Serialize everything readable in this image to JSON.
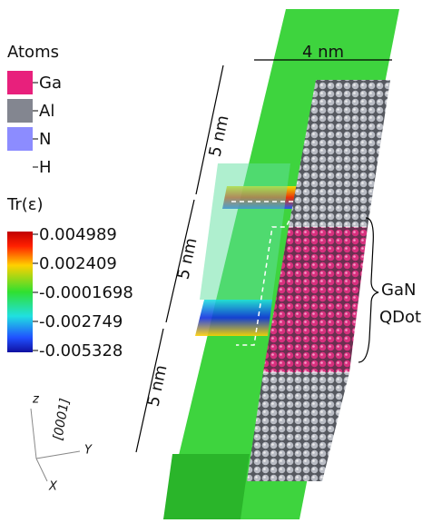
{
  "legend": {
    "title": "Atoms",
    "items": [
      "Ga",
      "Al",
      "N",
      "H"
    ]
  },
  "colorbar": {
    "title": "Tr(ε)",
    "labels": [
      "0.004989",
      "0.002409",
      "-0.0001698",
      "-0.002749",
      "-0.005328"
    ]
  },
  "dimensions": {
    "width": "4 nm",
    "heights": [
      "5 nm",
      "5 nm",
      "5 nm"
    ]
  },
  "annotation": {
    "lines": [
      "GaN",
      "QDot"
    ]
  },
  "axes": {
    "z": "z",
    "direction": "[0001]",
    "y": "Y",
    "x": "X"
  }
}
